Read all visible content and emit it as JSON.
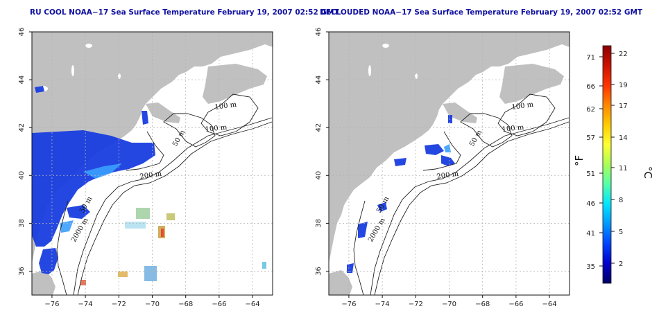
{
  "titles": {
    "left": "RU COOL NOAA−17 Sea Surface Temperature February 19, 2007 02:52 GMT",
    "right": "DECLOUDED NOAA−17 Sea Surface Temperature February 19, 2007 02:52 GMT"
  },
  "axes": {
    "x_ticks": [
      -76,
      -74,
      -72,
      -70,
      -68,
      -66,
      -64
    ],
    "x_tick_labels": [
      "−76",
      "−74",
      "−72",
      "−70",
      "−68",
      "−66",
      "−64"
    ],
    "y_ticks": [
      36,
      38,
      40,
      42,
      44,
      46
    ],
    "y_tick_labels": [
      "36",
      "38",
      "40",
      "42",
      "44",
      "46"
    ],
    "x_range": [
      -77.2,
      -62.8
    ],
    "y_range": [
      35.0,
      46.0
    ]
  },
  "contour_labels": [
    "100 m",
    "100 m",
    "50 m",
    "200 m",
    "50 m",
    "2000 m"
  ],
  "colorbar": {
    "unit_f": "°F",
    "unit_c": "°C",
    "f_labels": [
      "71",
      "66",
      "62",
      "57",
      "51",
      "46",
      "41",
      "35"
    ],
    "c_labels": [
      "22",
      "19",
      "17",
      "14",
      "11",
      "8",
      "5",
      "2"
    ],
    "colors": [
      "#8b0000",
      "#cc1100",
      "#ff3300",
      "#ff8800",
      "#ffcc00",
      "#ffff33",
      "#aaff55",
      "#55ffaa",
      "#00e5ff",
      "#0099ff",
      "#0044ff",
      "#0000cc",
      "#000066"
    ]
  },
  "colors": {
    "land": "#c0c0c0",
    "sst_cold": "#1030e0",
    "sst_warm": "#e03010",
    "grid": "#b4b4b4"
  }
}
